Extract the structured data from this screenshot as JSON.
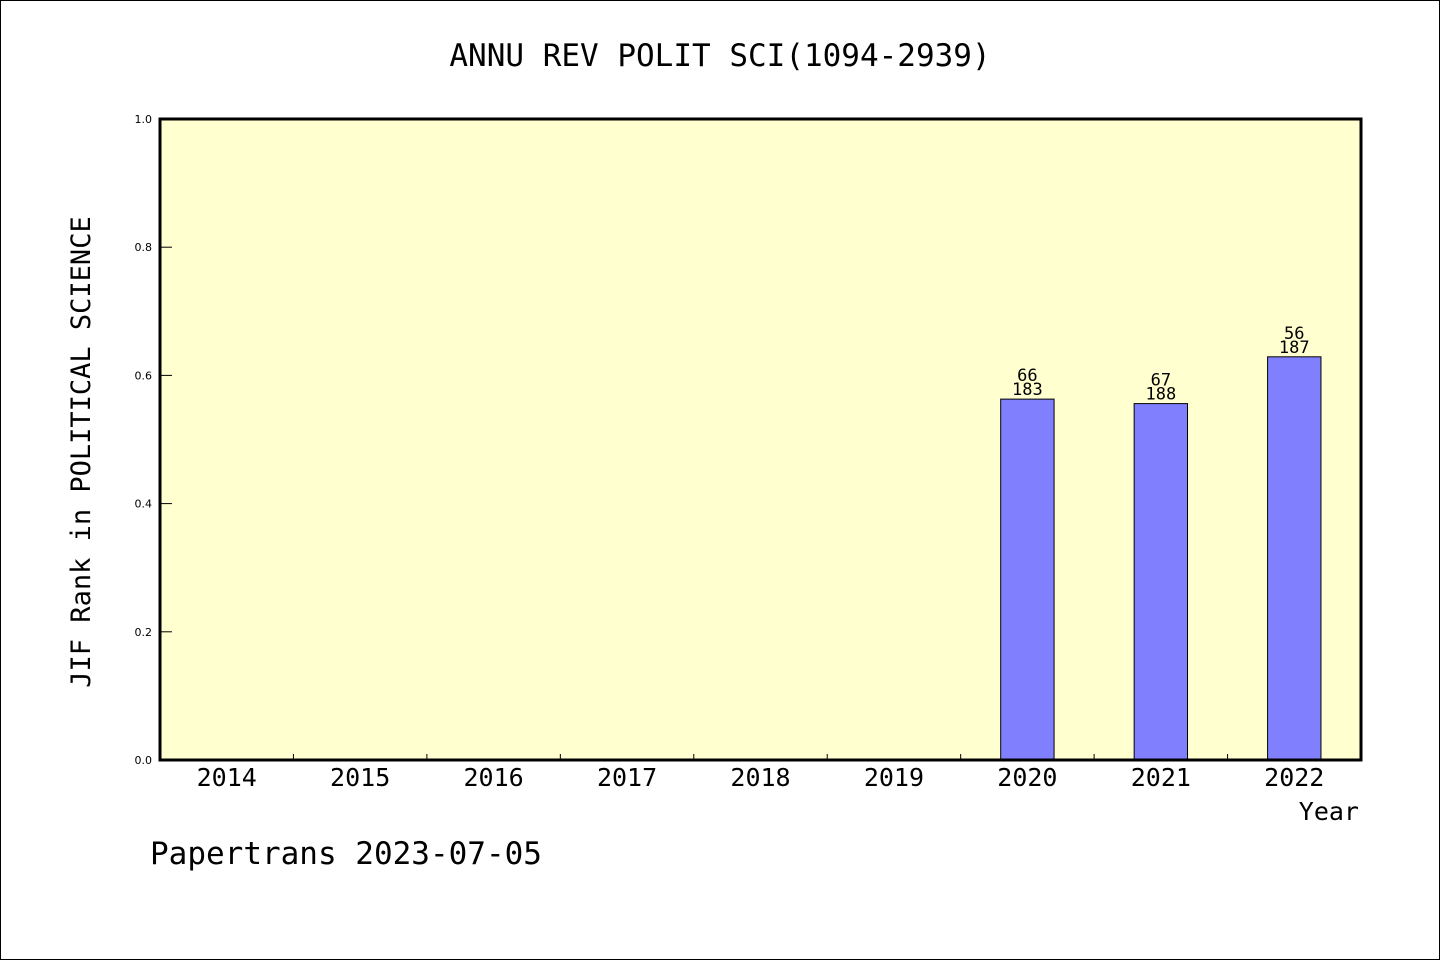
{
  "chart_data": {
    "type": "bar",
    "title": "ANNU REV POLIT SCI(1094-2939)",
    "xlabel": "Year",
    "ylabel": "JIF Rank in POLITICAL SCIENCE",
    "categories": [
      "2014",
      "2015",
      "2016",
      "2017",
      "2018",
      "2019",
      "2020",
      "2021",
      "2022"
    ],
    "values": [
      null,
      null,
      null,
      null,
      null,
      null,
      0.563,
      0.556,
      0.629
    ],
    "bar_labels": [
      null,
      null,
      null,
      null,
      null,
      null,
      {
        "rank": "66",
        "total": "183"
      },
      {
        "rank": "67",
        "total": "188"
      },
      {
        "rank": "56",
        "total": "187"
      }
    ],
    "ylim": [
      0,
      1.0
    ],
    "yticks": [
      "0.0",
      "0.2",
      "0.4",
      "0.6",
      "0.8",
      "1.0"
    ],
    "grid": false,
    "colors": {
      "plot_background": "#ffffd0",
      "bar_fill": "#8080ff",
      "bar_stroke": "#000000"
    }
  },
  "footer": "Papertrans 2023-07-05"
}
